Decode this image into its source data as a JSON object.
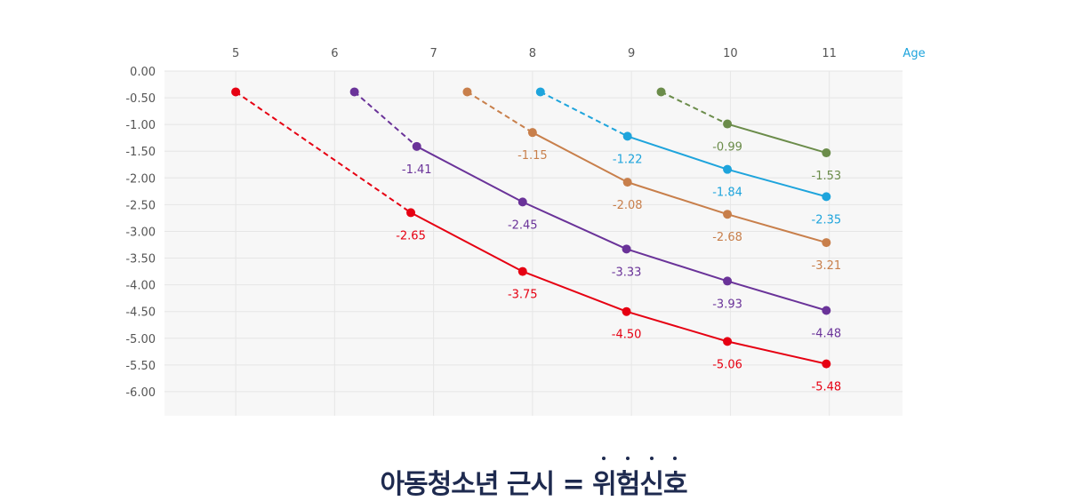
{
  "chart_data": {
    "type": "line",
    "title": "",
    "xlabel": "Age",
    "ylabel": "",
    "x_ticks": [
      "5",
      "6",
      "7",
      "8",
      "9",
      "10",
      "11"
    ],
    "y_ticks": [
      "0.00",
      "-0.50",
      "-1.00",
      "-1.50",
      "-2.00",
      "-2.50",
      "-3.00",
      "-3.50",
      "-4.00",
      "-4.50",
      "-5.00",
      "-5.50",
      "-6.00"
    ],
    "xlim": [
      4.28,
      11.74
    ],
    "ylim": [
      -6.45,
      0.0
    ],
    "grid": true,
    "legend": "none",
    "series": [
      {
        "color": "#e60012",
        "points": [
          [
            5,
            -0.39
          ],
          [
            6.77,
            -2.65
          ],
          [
            7.9,
            -3.75
          ],
          [
            8.95,
            -4.5
          ],
          [
            9.97,
            -5.06
          ],
          [
            10.97,
            -5.48
          ]
        ],
        "labels": [
          "",
          "-2.65",
          "-3.75",
          "-4.50",
          "-5.06",
          "-5.48"
        ]
      },
      {
        "color": "#6a3399",
        "points": [
          [
            6.2,
            -0.39
          ],
          [
            6.83,
            -1.41
          ],
          [
            7.9,
            -2.45
          ],
          [
            8.95,
            -3.33
          ],
          [
            9.97,
            -3.93
          ],
          [
            10.97,
            -4.48
          ]
        ],
        "labels": [
          "",
          "-1.41",
          "-2.45",
          "-3.33",
          "-3.93",
          "-4.48"
        ]
      },
      {
        "color": "#c87f4b",
        "points": [
          [
            7.34,
            -0.39
          ],
          [
            8.0,
            -1.15
          ],
          [
            8.96,
            -2.08
          ],
          [
            9.97,
            -2.68
          ],
          [
            10.97,
            -3.21
          ]
        ],
        "labels": [
          "",
          "-1.15",
          "-2.08",
          "-2.68",
          "-3.21"
        ]
      },
      {
        "color": "#1ea4dc",
        "points": [
          [
            8.08,
            -0.39
          ],
          [
            8.96,
            -1.22
          ],
          [
            9.97,
            -1.84
          ],
          [
            10.97,
            -2.35
          ]
        ],
        "labels": [
          "",
          "-1.22",
          "-1.84",
          "-2.35"
        ]
      },
      {
        "color": "#6b8c4a",
        "points": [
          [
            9.3,
            -0.39
          ],
          [
            9.97,
            -0.99
          ],
          [
            10.97,
            -1.53
          ]
        ],
        "labels": [
          "",
          "-0.99",
          "-1.53"
        ]
      }
    ],
    "dashed_first_segment": true,
    "axis_title_color": "#1ea4dc"
  },
  "caption": {
    "plain": "아동청소년 근시 = ",
    "emphasis": [
      "위",
      "험",
      "신",
      "호"
    ],
    "color": "#1e2a4f"
  }
}
